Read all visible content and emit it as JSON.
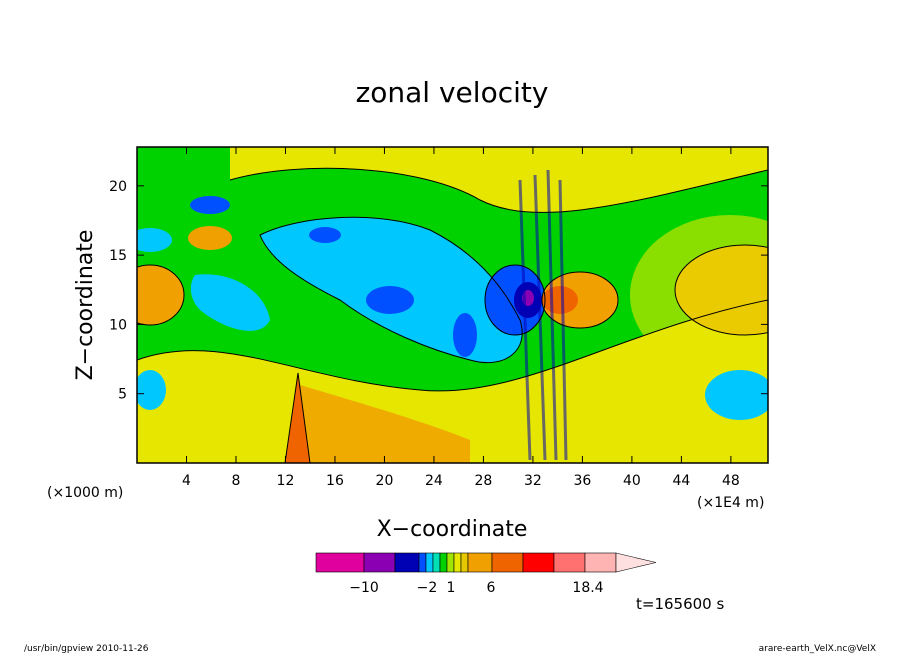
{
  "chart_data": {
    "type": "heatmap",
    "title": "zonal velocity",
    "xlabel": "X−coordinate",
    "ylabel": "Z−coordinate",
    "x_unit_left": "(×1000 m)",
    "x_unit_right": "(×1E4 m)",
    "xlim": [
      0,
      51
    ],
    "ylim": [
      0,
      22.8
    ],
    "x_ticks": [
      4,
      8,
      12,
      16,
      20,
      24,
      28,
      32,
      36,
      40,
      44,
      48
    ],
    "y_ticks": [
      5,
      10,
      15,
      20
    ],
    "colorbar": {
      "colors": [
        "#e0009e",
        "#8c00b4",
        "#0000b4",
        "#0050ff",
        "#00c8ff",
        "#00e0b4",
        "#00d200",
        "#a0e600",
        "#e6e600",
        "#e6c800",
        "#f0a000",
        "#f06400",
        "#ff0000",
        "#ff7070",
        "#ffb4b4"
      ],
      "tick_labels": [
        "−10",
        "−2",
        "1",
        "6",
        "18.4"
      ]
    },
    "field_features": [
      {
        "type": "positive_core",
        "x": 33.2,
        "z": 12.5,
        "value": 18.4
      },
      {
        "type": "negative_core",
        "x": 31.6,
        "z": 12.5,
        "value": -10
      },
      {
        "type": "positive_jet",
        "x": 12.8,
        "z": 4.5,
        "value": 6
      },
      {
        "type": "negative_region",
        "x": 22.0,
        "z": 12.0,
        "value": -2
      },
      {
        "type": "positive_region",
        "x": 47.5,
        "z": 12.0,
        "value": 3
      },
      {
        "type": "positive_region",
        "x": 1.0,
        "z": 12.0,
        "value": 3
      }
    ]
  },
  "annotations": {
    "time": "t=165600 s",
    "program_date": "/usr/bin/gpview   2010-11-26",
    "file_var": "arare-earth_VelX.nc@VelX"
  }
}
